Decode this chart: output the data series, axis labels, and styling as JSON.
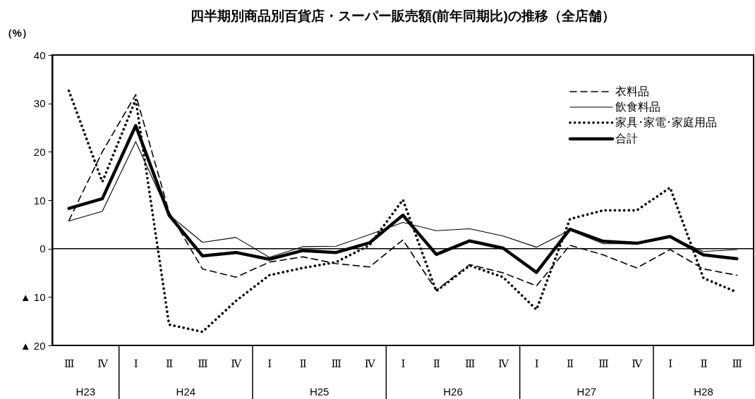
{
  "chart_data": {
    "type": "line",
    "title": "四半期別商品別百貨店・スーパー販売額(前年同期比)の推移（全店舗）",
    "ylabel": "（%）",
    "categories": [
      "Ⅲ",
      "Ⅳ",
      "Ⅰ",
      "Ⅱ",
      "Ⅲ",
      "Ⅳ",
      "Ⅰ",
      "Ⅱ",
      "Ⅲ",
      "Ⅳ",
      "Ⅰ",
      "Ⅱ",
      "Ⅲ",
      "Ⅳ",
      "Ⅰ",
      "Ⅱ",
      "Ⅲ",
      "Ⅳ",
      "Ⅰ",
      "Ⅱ",
      "Ⅲ"
    ],
    "annotations": [
      "H23",
      "H24",
      "H25",
      "H26",
      "H27",
      "H28"
    ],
    "series": [
      {
        "name": "衣料品",
        "color": "#000000",
        "line_style": "dashed",
        "values": [
          5.8,
          20,
          31.8,
          7.5,
          -4.2,
          -5.9,
          -2.8,
          -1.7,
          -3.1,
          -3.8,
          1.8,
          -8.6,
          -3.3,
          -5.0,
          -7.7,
          0.7,
          -1.3,
          -4.0,
          -0.2,
          -4.2,
          -5.5
        ]
      },
      {
        "name": "飲食料品",
        "color": "#000000",
        "line_style": "solid",
        "values": [
          5.7,
          7.7,
          22.1,
          7.0,
          1.3,
          2.3,
          -1.8,
          0.4,
          0.5,
          2.9,
          5.4,
          3.7,
          4.1,
          2.6,
          0.3,
          3.8,
          1.0,
          1.0,
          2.4,
          -0.6,
          -0.2
        ]
      },
      {
        "name": "家具･家電･家庭用品",
        "color": "#000000",
        "line_style": "dotted",
        "values": [
          32.6,
          13.8,
          30.8,
          -15.7,
          -17.2,
          -10.8,
          -5.5,
          -4.0,
          -2.8,
          0.7,
          10.1,
          -8.8,
          -3.5,
          -5.9,
          -12.6,
          6.1,
          7.9,
          7.9,
          12.6,
          -6.1,
          -9.0
        ]
      },
      {
        "name": "合計",
        "color": "#000000",
        "line_style": "solid",
        "values": [
          8.3,
          10.3,
          25.4,
          6.9,
          -1.5,
          -0.8,
          -2.2,
          -0.4,
          -0.8,
          1.2,
          6.9,
          -1.2,
          1.6,
          0.1,
          -4.9,
          4.0,
          1.5,
          1.1,
          2.5,
          -1.3,
          -2.1
        ]
      }
    ],
    "ylim": [
      -20,
      40
    ],
    "yticks": [
      {
        "value": -20,
        "label": "▲ 20"
      },
      {
        "value": -10,
        "label": "▲ 10"
      },
      0,
      10,
      20,
      30,
      40
    ],
    "ref_lines": [
      {
        "axis": "y",
        "value": 0
      }
    ],
    "legend": "top right"
  }
}
